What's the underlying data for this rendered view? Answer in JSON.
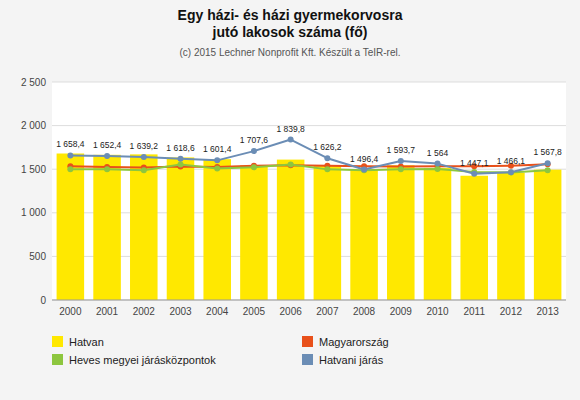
{
  "chart_data": {
    "type": "bar",
    "title": "Egy házi- és házi gyermekorvosra\njutó lakosok száma (fő)",
    "subtitle": "(c) 2015 Lechner Nonprofit Kft. Készült a TeIR-rel.",
    "categories": [
      "2000",
      "2001",
      "2002",
      "2003",
      "2004",
      "2005",
      "2006",
      "2007",
      "2008",
      "2009",
      "2010",
      "2011",
      "2012",
      "2013"
    ],
    "series": [
      {
        "name": "Hatvan",
        "type": "bar",
        "color": "#FFE800",
        "values": [
          1680,
          1665,
          1670,
          1635,
          1615,
          1545,
          1610,
          1545,
          1490,
          1545,
          1515,
          1425,
          1460,
          1495
        ]
      },
      {
        "name": "Magyarország",
        "type": "line",
        "color": "#E8501A",
        "marker": "circle",
        "values": [
          1535,
          1525,
          1520,
          1530,
          1525,
          1540,
          1545,
          1540,
          1535,
          1530,
          1535,
          1535,
          1540,
          1558
        ]
      },
      {
        "name": "Heves megyei járásközpontok",
        "type": "line",
        "color": "#8DC63F",
        "marker": "circle",
        "values": [
          1498,
          1500,
          1488,
          1555,
          1508,
          1522,
          1555,
          1498,
          1488,
          1498,
          1502,
          1468,
          1462,
          1488
        ]
      },
      {
        "name": "Hatvani járás",
        "type": "line",
        "color": "#6B8DB5",
        "marker": "circle",
        "data_labels": true,
        "values": [
          1658.4,
          1652.4,
          1639.2,
          1618.6,
          1601.4,
          1707.6,
          1839.8,
          1626.2,
          1496.4,
          1593.7,
          1564.0,
          1447.1,
          1466.1,
          1567.8
        ],
        "value_labels": [
          "1 658,4",
          "1 652,4",
          "1 639,2",
          "1 618,6",
          "1 601,4",
          "1 707,6",
          "1 839,8",
          "1 626,2",
          "1 496,4",
          "1 593,7",
          "1 564",
          "1 447,1",
          "1 466,1",
          "1 567,8"
        ]
      }
    ],
    "ylim": [
      0,
      2500
    ],
    "yticks": [
      0,
      500,
      {
        "value": 1000,
        "label": "1 000"
      },
      {
        "value": 1500,
        "label": "1 500"
      },
      {
        "value": 2000,
        "label": "2 000"
      },
      {
        "value": 2500,
        "label": "2 500"
      }
    ],
    "grid": true,
    "legend": "bottom"
  }
}
